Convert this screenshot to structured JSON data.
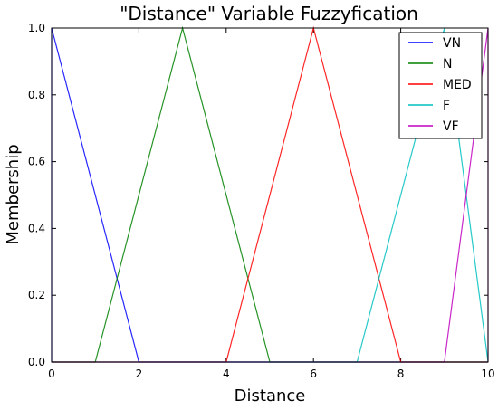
{
  "chart_data": {
    "type": "line",
    "title": "\"Distance\" Variable Fuzzyfication",
    "xlabel": "Distance",
    "ylabel": "Membership",
    "xlim": [
      0,
      10
    ],
    "ylim": [
      0,
      1
    ],
    "x_ticks": [
      "0",
      "2",
      "4",
      "6",
      "8",
      "10"
    ],
    "y_ticks": [
      "0.0",
      "0.2",
      "0.4",
      "0.6",
      "0.8",
      "1.0"
    ],
    "grid": false,
    "legend_position": "top-right",
    "series": [
      {
        "name": "VN",
        "color": "#0000ff",
        "x": [
          0,
          0,
          2,
          10
        ],
        "y": [
          0,
          1,
          0,
          0
        ]
      },
      {
        "name": "N",
        "color": "#008000",
        "x": [
          0,
          1,
          3,
          5,
          10
        ],
        "y": [
          0,
          0,
          1,
          0,
          0
        ]
      },
      {
        "name": "MED",
        "color": "#ff0000",
        "x": [
          0,
          4,
          6,
          8,
          10
        ],
        "y": [
          0,
          0,
          1,
          0,
          0
        ]
      },
      {
        "name": "F",
        "color": "#00bfbf",
        "x": [
          0,
          7,
          9,
          10
        ],
        "y": [
          0,
          0,
          1,
          0
        ]
      },
      {
        "name": "VF",
        "color": "#bf00bf",
        "x": [
          0,
          9,
          10,
          10
        ],
        "y": [
          0,
          0,
          1,
          0
        ]
      }
    ]
  }
}
